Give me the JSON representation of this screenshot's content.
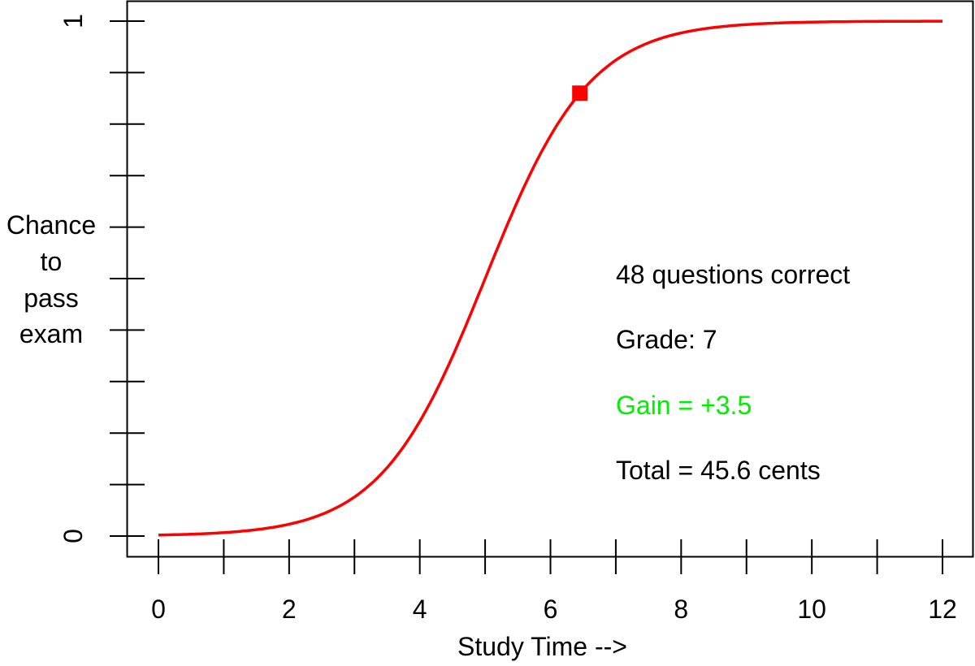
{
  "chart_data": {
    "type": "line",
    "title": "",
    "xlabel": "Study Time -->",
    "ylabel": "Chance to pass exam",
    "ylabel_lines": [
      "Chance",
      "to",
      "pass",
      "exam"
    ],
    "xlim": [
      0,
      12
    ],
    "ylim": [
      0,
      1
    ],
    "x_ticks": [
      0,
      1,
      2,
      3,
      4,
      5,
      6,
      7,
      8,
      9,
      10,
      11,
      12
    ],
    "x_tick_labels": [
      "0",
      "",
      "2",
      "",
      "4",
      "",
      "6",
      "",
      "8",
      "",
      "10",
      "",
      "12"
    ],
    "y_ticks": [
      0,
      0.1,
      0.2,
      0.3,
      0.4,
      0.5,
      0.6,
      0.7,
      0.8,
      0.9,
      1
    ],
    "y_tick_labels": [
      "0",
      "",
      "",
      "",
      "",
      "",
      "",
      "",
      "",
      "",
      "1"
    ],
    "grid": false,
    "series": [
      {
        "name": "Chance to pass exam",
        "color": "#ff0000",
        "model": "logistic",
        "midpoint": 5.0,
        "steepness": 1.25,
        "x": [
          0,
          1,
          2,
          3,
          4,
          5,
          6,
          7,
          8,
          9,
          10,
          11,
          12
        ],
        "values": [
          0.002,
          0.007,
          0.023,
          0.076,
          0.223,
          0.5,
          0.777,
          0.924,
          0.977,
          0.993,
          0.998,
          0.999,
          1.0
        ]
      }
    ],
    "marker": {
      "x": 6.45,
      "y": 0.86,
      "shape": "square",
      "color": "#ff0000"
    },
    "annotations": [
      {
        "text": "48 questions correct",
        "color": "#000000"
      },
      {
        "text": "Grade: 7",
        "color": "#000000"
      },
      {
        "text": "Gain = +3.5",
        "color": "#00ee00"
      },
      {
        "text": "Total = 45.6 cents",
        "color": "#000000"
      }
    ]
  }
}
